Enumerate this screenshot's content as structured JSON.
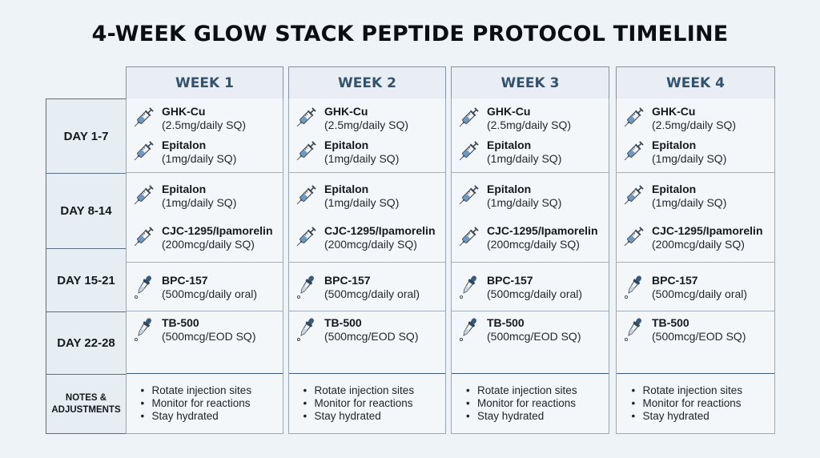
{
  "title": "4-WEEK GLOW STACK PEPTIDE PROTOCOL TIMELINE",
  "row_labels": [
    "DAY 1-7",
    "DAY 8-14",
    "DAY 15-21",
    "DAY 22-28",
    "NOTES & ADJUSTMENTS"
  ],
  "weeks": [
    {
      "label": "WEEK 1",
      "rows": [
        [
          {
            "icon": "syringe-icon",
            "name": "GHK-Cu",
            "dose": "(2.5mg/daily SQ)"
          },
          {
            "icon": "syringe-icon",
            "name": "Epitalon",
            "dose": "(1mg/daily SQ)"
          }
        ],
        [
          {
            "icon": "syringe-icon",
            "name": "Epitalon",
            "dose": "(1mg/daily SQ)"
          },
          {
            "icon": "syringe-icon",
            "name": "CJC-1295/Ipamorelin",
            "dose": "(200mcg/daily SQ)"
          }
        ],
        [
          {
            "icon": "dropper-icon",
            "name": "BPC-157",
            "dose": "(500mcg/daily oral)"
          }
        ],
        [
          {
            "icon": "dropper-icon",
            "name": "TB-500",
            "dose": "(500mcg/EOD SQ)"
          }
        ]
      ],
      "notes": [
        "Rotate injection sites",
        "Monitor for reactions",
        "Stay hydrated"
      ]
    },
    {
      "label": "WEEK 2",
      "rows": [
        [
          {
            "icon": "syringe-icon",
            "name": "GHK-Cu",
            "dose": "(2.5mg/daily SQ)"
          },
          {
            "icon": "syringe-icon",
            "name": "Epitalon",
            "dose": "(1mg/daily SQ)"
          }
        ],
        [
          {
            "icon": "syringe-icon",
            "name": "Epitalon",
            "dose": "(1mg/daily SQ)"
          },
          {
            "icon": "syringe-icon",
            "name": "CJC-1295/Ipamorelin",
            "dose": "(200mcg/daily SQ)"
          }
        ],
        [
          {
            "icon": "dropper-icon",
            "name": "BPC-157",
            "dose": "(500mcg/daily oral)"
          }
        ],
        [
          {
            "icon": "dropper-icon",
            "name": "TB-500",
            "dose": "(500mcg/EOD SQ)"
          }
        ]
      ],
      "notes": [
        "Rotate injection sites",
        "Monitor for reactions",
        "Stay hydrated"
      ]
    },
    {
      "label": "WEEK 3",
      "rows": [
        [
          {
            "icon": "syringe-icon",
            "name": "GHK-Cu",
            "dose": "(2.5mg/daily SQ)"
          },
          {
            "icon": "syringe-icon",
            "name": "Epitalon",
            "dose": "(1mg/daily SQ)"
          }
        ],
        [
          {
            "icon": "syringe-icon",
            "name": "Epitalon",
            "dose": "(1mg/daily SQ)"
          },
          {
            "icon": "syringe-icon",
            "name": "CJC-1295/Ipamorelin",
            "dose": "(200mcg/daily SQ)"
          }
        ],
        [
          {
            "icon": "dropper-icon",
            "name": "BPC-157",
            "dose": "(500mcg/daily oral)"
          }
        ],
        [
          {
            "icon": "dropper-icon",
            "name": "TB-500",
            "dose": "(500mcg/EOD SQ)"
          }
        ]
      ],
      "notes": [
        "Rotate injection sites",
        "Monitor for reactions",
        "Stay hydrated"
      ]
    },
    {
      "label": "WEEK 4",
      "rows": [
        [
          {
            "icon": "syringe-icon",
            "name": "GHK-Cu",
            "dose": "(2.5mg/daily SQ)"
          },
          {
            "icon": "syringe-icon",
            "name": "Epitalon",
            "dose": "(1mg/daily SQ)"
          }
        ],
        [
          {
            "icon": "syringe-icon",
            "name": "Epitalon",
            "dose": "(1mg/daily SQ)"
          },
          {
            "icon": "syringe-icon",
            "name": "CJC-1295/Ipamorelin",
            "dose": "(200mcg/daily SQ)"
          }
        ],
        [
          {
            "icon": "dropper-icon",
            "name": "BPC-157",
            "dose": "(500mcg/daily oral)"
          }
        ],
        [
          {
            "icon": "dropper-icon",
            "name": "TB-500",
            "dose": "(500mcg/EOD SQ)"
          }
        ]
      ],
      "notes": [
        "Rotate injection sites",
        "Monitor for reactions",
        "Stay hydrated"
      ]
    }
  ],
  "colors": {
    "background": "#eef3f7",
    "header_text": "#35526d",
    "syringe_fill": "#6f98c2",
    "dropper_bulb": "#3d5a78",
    "border_dark": "#3f5770"
  }
}
